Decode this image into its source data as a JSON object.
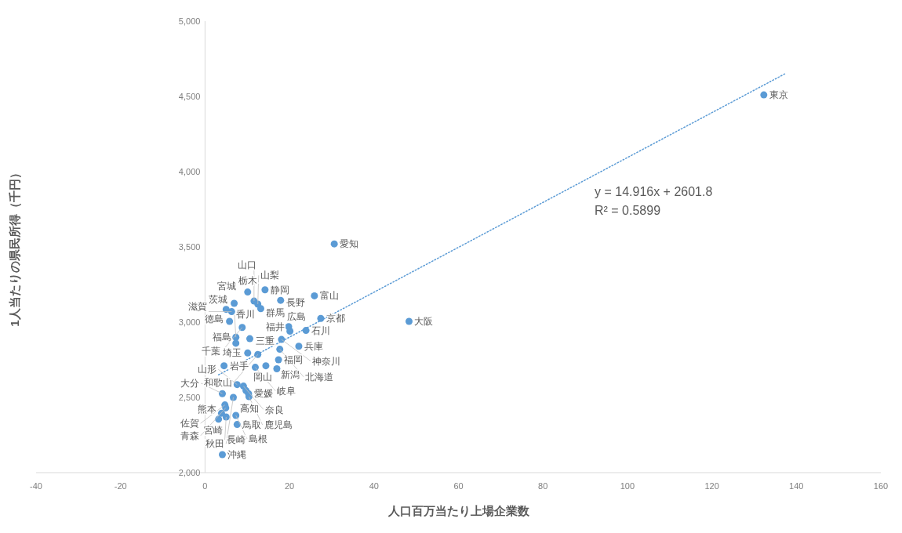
{
  "chart_data": {
    "type": "scatter",
    "xlabel": "人口百万当たり上場企業数",
    "ylabel": "1人当たりの県民所得（千円）",
    "xlim": [
      -40,
      160
    ],
    "xticks": [
      -40,
      -20,
      0,
      20,
      40,
      60,
      80,
      100,
      120,
      140,
      160
    ],
    "ylim": [
      2000,
      5000
    ],
    "yticks": [
      {
        "value": 2000,
        "label": "2,000"
      },
      {
        "value": 2500,
        "label": "2,500"
      },
      {
        "value": 3000,
        "label": "3,000"
      },
      {
        "value": 3500,
        "label": "3,500"
      },
      {
        "value": 4000,
        "label": "4,000"
      },
      {
        "value": 4500,
        "label": "4,500"
      },
      {
        "value": 5000,
        "label": "5,000"
      }
    ],
    "series": [
      {
        "marker": "circle",
        "color": "#5b9bd5",
        "x": [
          132.3,
          30.6,
          48.3,
          25.9,
          27.4,
          23.9,
          22.2,
          19.8,
          20.1,
          18.1,
          17.7,
          17.4,
          17.0,
          10.1,
          14.2,
          6.9,
          5.0,
          11.6,
          12.5,
          13.2,
          17.9,
          8.8,
          7.3,
          10.6,
          7.3,
          10.1,
          12.5,
          4.5,
          11.9,
          14.4,
          7.6,
          9.1,
          9.7,
          10.3,
          10.4,
          4.1,
          6.7,
          4.7,
          4.9,
          3.9,
          5.0,
          3.2,
          7.3,
          7.6,
          4.1,
          6.3,
          5.8
        ],
        "values": [
          4510,
          3520,
          3005,
          3175,
          3025,
          2945,
          2840,
          2970,
          2940,
          2885,
          2820,
          2750,
          2690,
          3200,
          3215,
          3125,
          3085,
          3140,
          3120,
          3090,
          3145,
          2965,
          2900,
          2890,
          2860,
          2795,
          2785,
          2710,
          2700,
          2710,
          2585,
          2575,
          2545,
          2525,
          2505,
          2525,
          2500,
          2450,
          2430,
          2395,
          2370,
          2355,
          2380,
          2320,
          2120,
          3070,
          3005
        ]
      },
      {
        "type": "line",
        "color": "#5b9bd5",
        "line_style": "dotted",
        "x": [
          3.2,
          137.3
        ],
        "values": [
          2650,
          4650
        ]
      }
    ],
    "annotations": [
      {
        "text": "東京",
        "x": 132.3,
        "y": 4510
      },
      {
        "text": "愛知",
        "x": 30.6,
        "y": 3520
      },
      {
        "text": "大阪",
        "x": 48.3,
        "y": 3005
      },
      {
        "text": "富山",
        "x": 25.9,
        "y": 3175
      },
      {
        "text": "京都",
        "x": 27.4,
        "y": 3025
      },
      {
        "text": "石川",
        "x": 23.9,
        "y": 2945
      },
      {
        "text": "兵庫",
        "x": 22.2,
        "y": 2840
      },
      {
        "text": "広島",
        "x": 19.8,
        "y": 2970
      },
      {
        "text": "福井",
        "x": 20.1,
        "y": 2940
      },
      {
        "text": "神奈川",
        "x": 18.1,
        "y": 2885
      },
      {
        "text": "北海道",
        "x": 17.7,
        "y": 2820
      },
      {
        "text": "福岡",
        "x": 17.4,
        "y": 2750
      },
      {
        "text": "新潟",
        "x": 17.0,
        "y": 2690
      },
      {
        "text": "栃木",
        "x": 10.1,
        "y": 3200
      },
      {
        "text": "静岡",
        "x": 14.2,
        "y": 3215
      },
      {
        "text": "宮城",
        "x": 6.9,
        "y": 3125
      },
      {
        "text": "茨城",
        "x": 5.0,
        "y": 3085
      },
      {
        "text": "山口",
        "x": 11.6,
        "y": 3140
      },
      {
        "text": "山梨",
        "x": 12.5,
        "y": 3120
      },
      {
        "text": "群馬",
        "x": 13.2,
        "y": 3090
      },
      {
        "text": "長野",
        "x": 17.9,
        "y": 3145
      },
      {
        "text": "千葉",
        "x": 8.8,
        "y": 2965
      },
      {
        "text": "香川",
        "x": 7.3,
        "y": 2900
      },
      {
        "text": "三重",
        "x": 10.6,
        "y": 2890
      },
      {
        "text": "福島",
        "x": 7.3,
        "y": 2860
      },
      {
        "text": "埼玉",
        "x": 10.1,
        "y": 2795
      },
      {
        "text": "和歌山",
        "x": 12.5,
        "y": 2785
      },
      {
        "text": "岩手",
        "x": 4.5,
        "y": 2710
      },
      {
        "text": "岐阜",
        "x": 11.9,
        "y": 2700
      },
      {
        "text": "岡山",
        "x": 14.4,
        "y": 2710
      },
      {
        "text": "山形",
        "x": 7.6,
        "y": 2585
      },
      {
        "text": "奈良",
        "x": 9.1,
        "y": 2575
      },
      {
        "text": "高知",
        "x": 9.7,
        "y": 2545
      },
      {
        "text": "愛媛",
        "x": 10.3,
        "y": 2525
      },
      {
        "text": "鹿児島",
        "x": 10.4,
        "y": 2505
      },
      {
        "text": "大分",
        "x": 4.1,
        "y": 2525
      },
      {
        "text": "秋田",
        "x": 6.7,
        "y": 2500
      },
      {
        "text": "佐賀",
        "x": 4.7,
        "y": 2450
      },
      {
        "text": "青森",
        "x": 4.9,
        "y": 2430
      },
      {
        "text": "熊本",
        "x": 3.9,
        "y": 2395
      },
      {
        "text": "長崎",
        "x": 5.0,
        "y": 2370
      },
      {
        "text": "宮崎",
        "x": 3.2,
        "y": 2355
      },
      {
        "text": "島根",
        "x": 7.3,
        "y": 2380
      },
      {
        "text": "鳥取",
        "x": 7.6,
        "y": 2320
      },
      {
        "text": "沖縄",
        "x": 4.1,
        "y": 2120
      },
      {
        "text": "滋賀",
        "x": 6.3,
        "y": 3070
      },
      {
        "text": "徳島",
        "x": 5.8,
        "y": 3005
      },
      "y = 14.916x + 2601.8",
      "R² = 0.5899"
    ]
  }
}
